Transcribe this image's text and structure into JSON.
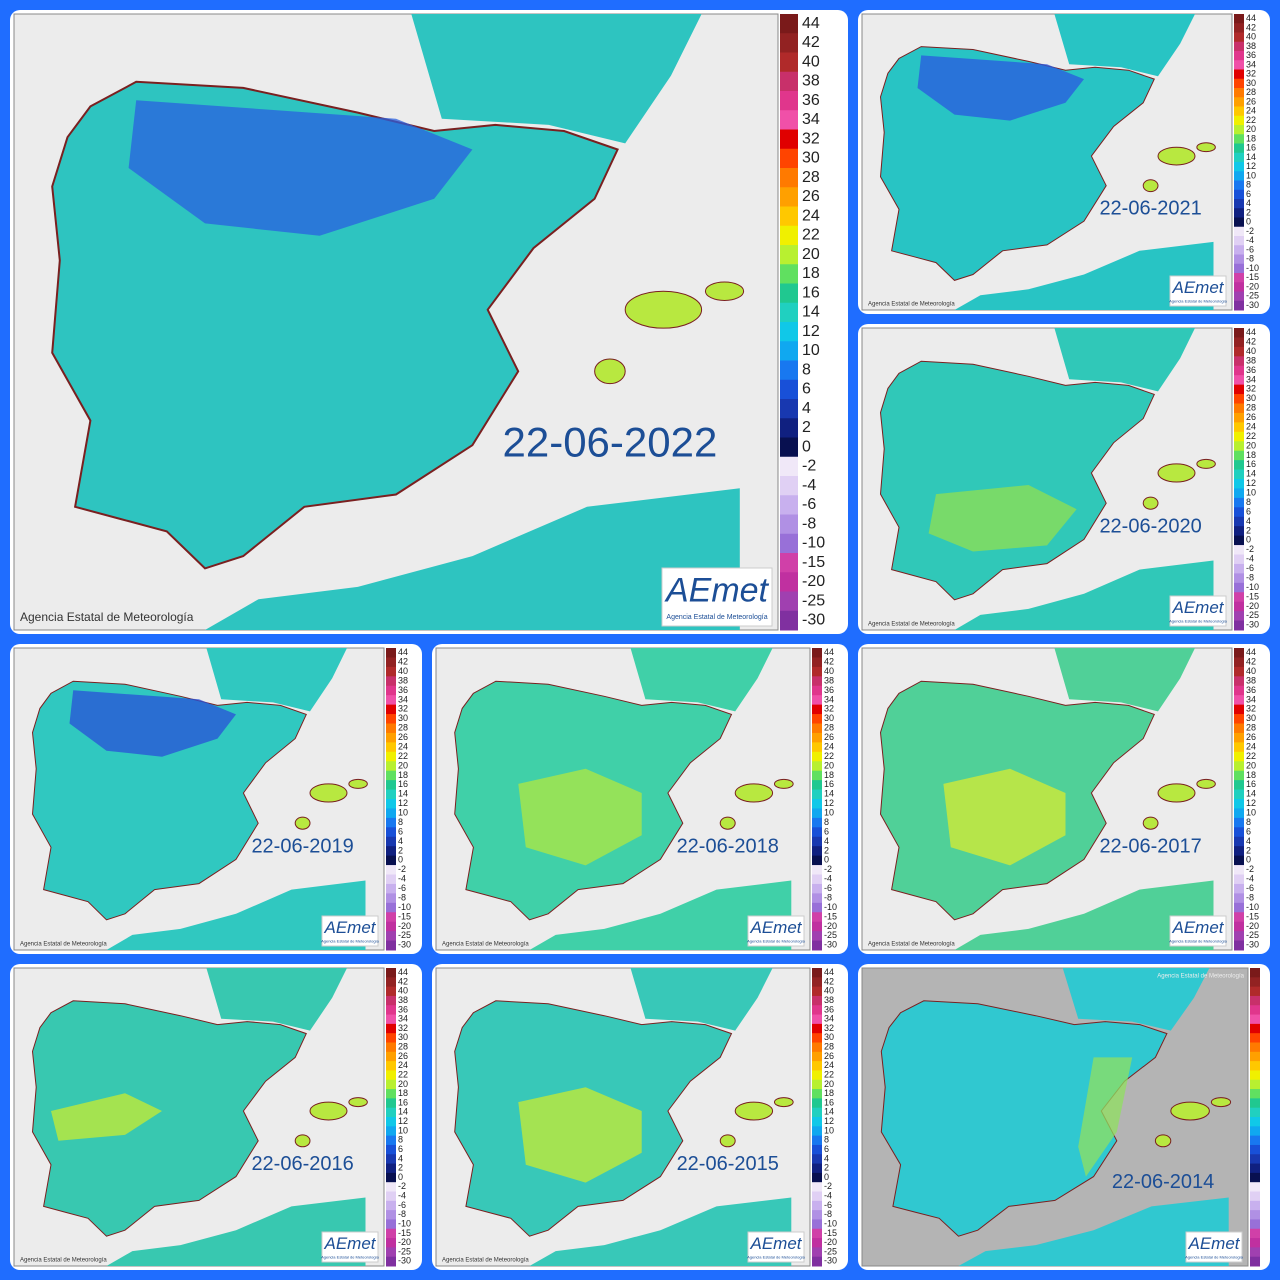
{
  "credit": "Agencia Estatal de Meteorología",
  "logo": "AEmet",
  "logo_subtitle": "Agencia Estatal de Meteorología",
  "legend": {
    "labels": [
      44,
      42,
      40,
      38,
      36,
      34,
      32,
      30,
      28,
      26,
      24,
      22,
      20,
      18,
      16,
      14,
      12,
      10,
      8,
      6,
      4,
      2,
      0,
      -2,
      -4,
      -6,
      -8,
      -10,
      -15,
      -20,
      -25,
      -30
    ]
  },
  "panels": [
    {
      "date": "22-06-2022"
    },
    {
      "date": "22-06-2021"
    },
    {
      "date": "22-06-2020"
    },
    {
      "date": "22-06-2019"
    },
    {
      "date": "22-06-2018"
    },
    {
      "date": "22-06-2017"
    },
    {
      "date": "22-06-2016"
    },
    {
      "date": "22-06-2015"
    },
    {
      "date": "22-06-2014"
    }
  ]
}
